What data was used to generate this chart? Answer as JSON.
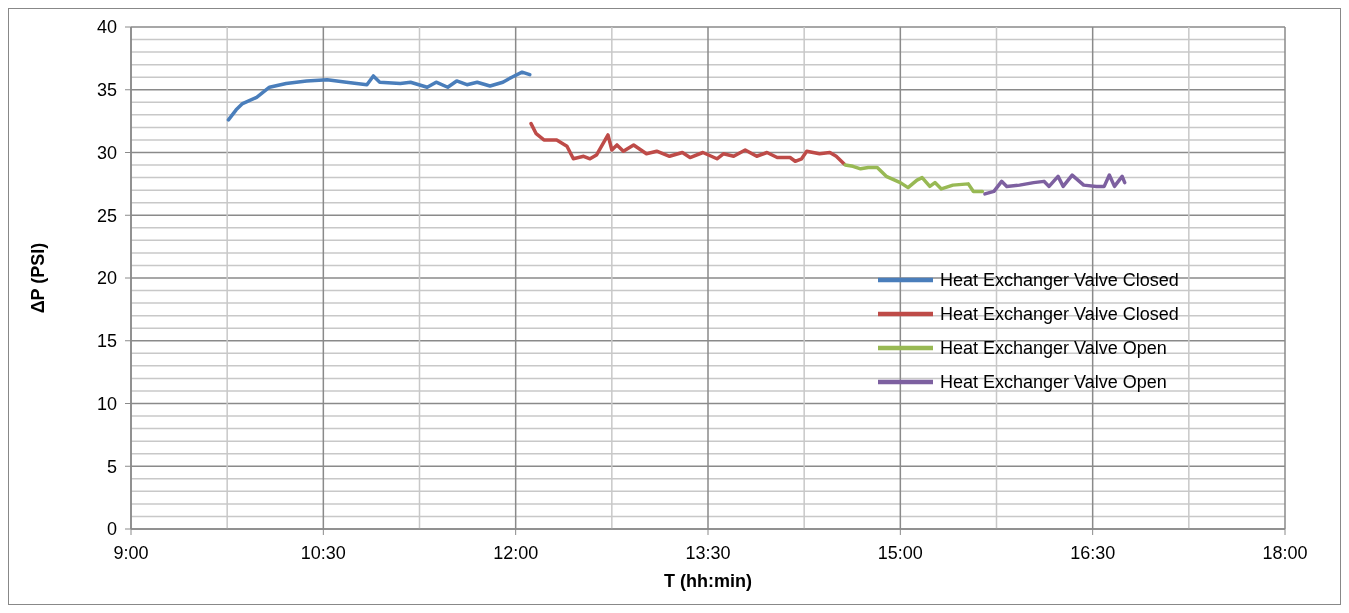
{
  "chart_data": {
    "type": "line",
    "xlabel": "T (hh:min)",
    "ylabel": "ΔP (PSI)",
    "xlim": [
      9,
      18
    ],
    "xticks": [
      {
        "value": 9,
        "label": "9:00"
      },
      {
        "value": 9.75,
        "label": null
      },
      {
        "value": 10.5,
        "label": "10:30"
      },
      {
        "value": 11.25,
        "label": null
      },
      {
        "value": 12,
        "label": "12:00"
      },
      {
        "value": 12.75,
        "label": null
      },
      {
        "value": 13.5,
        "label": "13:30"
      },
      {
        "value": 14.25,
        "label": null
      },
      {
        "value": 15,
        "label": "15:00"
      },
      {
        "value": 15.75,
        "label": null
      },
      {
        "value": 16.5,
        "label": "16:30"
      },
      {
        "value": 17.25,
        "label": null
      },
      {
        "value": 18,
        "label": "18:00"
      }
    ],
    "ylim": [
      0,
      40
    ],
    "yticks": [
      0,
      {
        "value": 1,
        "label": null
      },
      {
        "value": 2,
        "label": null
      },
      {
        "value": 3,
        "label": null
      },
      {
        "value": 4,
        "label": null
      },
      5,
      {
        "value": 6,
        "label": null
      },
      {
        "value": 7,
        "label": null
      },
      {
        "value": 8,
        "label": null
      },
      {
        "value": 9,
        "label": null
      },
      10,
      {
        "value": 11,
        "label": null
      },
      {
        "value": 12,
        "label": null
      },
      {
        "value": 13,
        "label": null
      },
      {
        "value": 14,
        "label": null
      },
      15,
      {
        "value": 16,
        "label": null
      },
      {
        "value": 17,
        "label": null
      },
      {
        "value": 18,
        "label": null
      },
      {
        "value": 19,
        "label": null
      },
      20,
      {
        "value": 21,
        "label": null
      },
      {
        "value": 22,
        "label": null
      },
      {
        "value": 23,
        "label": null
      },
      {
        "value": 24,
        "label": null
      },
      25,
      {
        "value": 26,
        "label": null
      },
      {
        "value": 27,
        "label": null
      },
      {
        "value": 28,
        "label": null
      },
      {
        "value": 29,
        "label": null
      },
      30,
      {
        "value": 31,
        "label": null
      },
      {
        "value": 32,
        "label": null
      },
      {
        "value": 33,
        "label": null
      },
      {
        "value": 34,
        "label": null
      },
      35,
      {
        "value": 36,
        "label": null
      },
      {
        "value": 37,
        "label": null
      },
      {
        "value": 38,
        "label": null
      },
      {
        "value": 39,
        "label": null
      },
      40
    ],
    "grid": true,
    "legend": "right",
    "marker": "none",
    "line_style": "solid",
    "series": [
      {
        "name": "Heat Exchanger Valve Closed",
        "color": "#4a7ebb",
        "x": [
          9.76,
          9.82,
          9.87,
          9.98,
          10.08,
          10.21,
          10.37,
          10.53,
          10.68,
          10.84,
          10.89,
          10.94,
          11.1,
          11.18,
          11.31,
          11.38,
          11.47,
          11.54,
          11.62,
          11.7,
          11.8,
          11.9,
          11.97,
          12.05,
          12.11
        ],
        "values": [
          32.6,
          33.4,
          33.9,
          34.4,
          35.2,
          35.5,
          35.7,
          35.8,
          35.6,
          35.4,
          36.1,
          35.6,
          35.5,
          35.6,
          35.2,
          35.6,
          35.2,
          35.7,
          35.4,
          35.6,
          35.3,
          35.6,
          36.0,
          36.4,
          36.2
        ]
      },
      {
        "name": "Heat Exchanger Valve Closed",
        "color": "#be4b48",
        "x": [
          12.12,
          12.16,
          12.22,
          12.32,
          12.4,
          12.45,
          12.53,
          12.58,
          12.63,
          12.72,
          12.75,
          12.79,
          12.84,
          12.92,
          13.02,
          13.1,
          13.2,
          13.3,
          13.36,
          13.46,
          13.57,
          13.62,
          13.7,
          13.79,
          13.88,
          13.96,
          14.04,
          14.14,
          14.18,
          14.23,
          14.27,
          14.37,
          14.45,
          14.5,
          14.56
        ],
        "values": [
          32.3,
          31.5,
          31.0,
          31.0,
          30.5,
          29.5,
          29.7,
          29.5,
          29.8,
          31.4,
          30.2,
          30.6,
          30.1,
          30.6,
          29.9,
          30.1,
          29.7,
          30.0,
          29.6,
          30.0,
          29.5,
          29.9,
          29.7,
          30.2,
          29.7,
          30.0,
          29.6,
          29.6,
          29.3,
          29.5,
          30.1,
          29.9,
          30.0,
          29.7,
          29.1
        ]
      },
      {
        "name": "Heat Exchanger Valve Open",
        "color": "#98b954",
        "x": [
          14.57,
          14.63,
          14.69,
          14.75,
          14.82,
          14.89,
          15.0,
          15.06,
          15.13,
          15.17,
          15.23,
          15.27,
          15.32,
          15.41,
          15.53,
          15.57,
          15.64
        ],
        "values": [
          29.0,
          28.9,
          28.7,
          28.8,
          28.8,
          28.1,
          27.6,
          27.2,
          27.8,
          28.0,
          27.3,
          27.6,
          27.1,
          27.4,
          27.5,
          26.9,
          26.9
        ]
      },
      {
        "name": "Heat Exchanger Valve Open",
        "color": "#7d60a0",
        "x": [
          15.66,
          15.73,
          15.79,
          15.83,
          15.93,
          16.04,
          16.12,
          16.16,
          16.23,
          16.27,
          16.34,
          16.43,
          16.53,
          16.59,
          16.63,
          16.67,
          16.73,
          16.75
        ],
        "values": [
          26.7,
          26.9,
          27.7,
          27.3,
          27.4,
          27.6,
          27.7,
          27.3,
          28.1,
          27.3,
          28.2,
          27.4,
          27.3,
          27.3,
          28.2,
          27.3,
          28.1,
          27.6
        ]
      }
    ]
  }
}
